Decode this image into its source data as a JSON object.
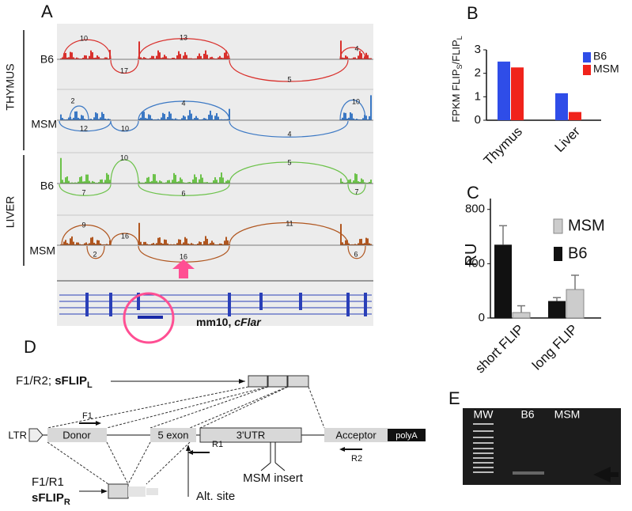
{
  "panel_a": {
    "label": "A",
    "groups": [
      "THYMUS",
      "LIVER"
    ],
    "tracks": [
      {
        "name": "B6",
        "junctions": [
          10,
          13,
          17,
          5,
          4
        ]
      },
      {
        "name": "MSM",
        "junctions": [
          2,
          12,
          10,
          4,
          10,
          4
        ]
      },
      {
        "name": "B6",
        "junctions": [
          10,
          5,
          7,
          6,
          7
        ]
      },
      {
        "name": "MSM",
        "junctions": [
          9,
          16,
          11,
          2,
          16,
          6
        ]
      }
    ],
    "gene_label": "mm10, ",
    "gene_name": "cFlar"
  },
  "chart_data": [
    {
      "type": "bar",
      "panel": "B",
      "ylabel": [
        "FPKM FLIP",
        "S",
        "/FLIP",
        "L"
      ],
      "categories": [
        "Thymus",
        "Liver"
      ],
      "series": [
        {
          "name": "B6",
          "color": "#2f4de8",
          "values": [
            2.5,
            1.15
          ]
        },
        {
          "name": "MSM",
          "color": "#f0231c",
          "values": [
            2.25,
            0.35
          ]
        }
      ],
      "ylim": [
        0,
        3
      ],
      "yticks": [
        0,
        1,
        2,
        3
      ]
    },
    {
      "type": "bar",
      "panel": "C",
      "ylabel": [
        "RU"
      ],
      "categories": [
        "short FLIP",
        "long FLIP"
      ],
      "series": [
        {
          "name": "B6",
          "color": "#111111",
          "values": [
            540,
            125
          ],
          "errors": [
            140,
            25
          ]
        },
        {
          "name": "MSM",
          "color": "#cccccc",
          "values": [
            40,
            210
          ],
          "errors": [
            50,
            105
          ]
        }
      ],
      "ylim": [
        0,
        880
      ],
      "yticks": [
        0,
        400,
        800
      ]
    }
  ],
  "panel_d": {
    "label": "D",
    "primer_pair_1": "F1/R2; ",
    "product_1": "sFLIP",
    "product_1_sub": "L",
    "ltr": "LTR",
    "donor": "Donor",
    "exon": "5 exon",
    "utr": "3'UTR",
    "acceptor": "Acceptor",
    "polya": "polyA",
    "f1": "F1",
    "r1": "R1",
    "r2": "R2",
    "insert": "MSM insert",
    "primer_pair_2": "F1/R1",
    "product_2": "sFLIP",
    "product_2_sub": "R",
    "alt_site": "Alt. site"
  },
  "panel_e": {
    "label": "E",
    "lanes": [
      "MW",
      "B6",
      "MSM"
    ]
  }
}
